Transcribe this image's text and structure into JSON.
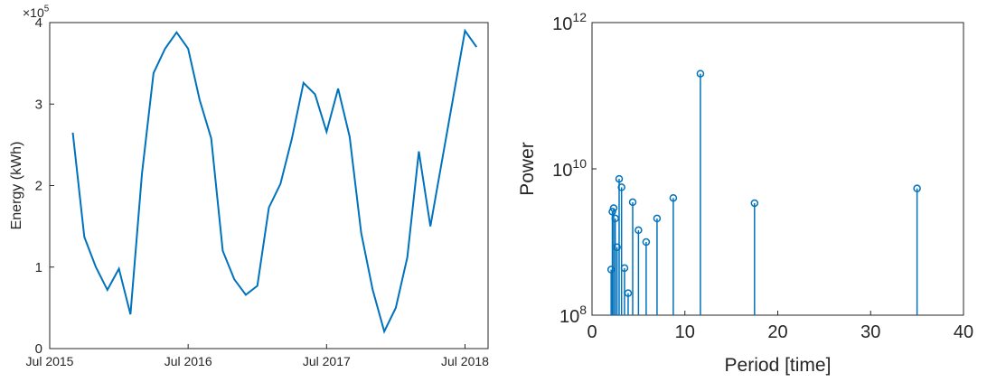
{
  "chart_data": [
    {
      "type": "line",
      "y_label": "Energy (kWh)",
      "y_multiplier": {
        "base": "×10",
        "exponent": "5"
      },
      "x": [
        "2015-09",
        "2015-10",
        "2015-11",
        "2015-12",
        "2016-01",
        "2016-02",
        "2016-03",
        "2016-04",
        "2016-05",
        "2016-06",
        "2016-07",
        "2016-08",
        "2016-09",
        "2016-10",
        "2016-11",
        "2016-12",
        "2017-01",
        "2017-02",
        "2017-03",
        "2017-04",
        "2017-05",
        "2017-06",
        "2017-07",
        "2017-08",
        "2017-09",
        "2017-10",
        "2017-11",
        "2017-12",
        "2018-01",
        "2018-02",
        "2018-03",
        "2018-04",
        "2018-07",
        "2018-08"
      ],
      "series": [
        {
          "color": "#0072bd",
          "values": [
            265000,
            137000,
            100000,
            72000,
            98000,
            42000,
            215000,
            338000,
            368000,
            388000,
            368000,
            305000,
            258000,
            120000,
            85000,
            66000,
            77000,
            173000,
            202000,
            258000,
            326000,
            312000,
            266000,
            319000,
            260000,
            142000,
            72000,
            21000,
            50000,
            112000,
            242000,
            150000,
            390000,
            370000
          ]
        }
      ],
      "xlim": [
        "2015-07",
        "2018-09"
      ],
      "xticks": [
        {
          "value": "2015-07",
          "label": "Jul 2015"
        },
        {
          "value": "2016-07",
          "label": "Jul 2016"
        },
        {
          "value": "2017-07",
          "label": "Jul 2017"
        },
        {
          "value": "2018-07",
          "label": "Jul 2018"
        }
      ],
      "ylim": [
        0,
        400000
      ],
      "yticks": [
        0,
        {
          "value": 100000,
          "label": "1"
        },
        {
          "value": 200000,
          "label": "2"
        },
        {
          "value": 300000,
          "label": "3"
        },
        {
          "value": 400000,
          "label": "4"
        }
      ]
    },
    {
      "type": "stem",
      "x_label": "Period [time]",
      "y_label": "Power",
      "log_y": true,
      "x": [
        35,
        17.5,
        11.67,
        8.75,
        7,
        5.83,
        5,
        4.38,
        3.89,
        3.5,
        3.18,
        2.92,
        2.69,
        2.5,
        2.33,
        2.19,
        2.06
      ],
      "series": [
        {
          "color": "#0072bd",
          "values": [
            5400000000.0,
            3400000000.0,
            200000000000.0,
            4000000000.0,
            2100000000.0,
            1000000000.0,
            1450000000.0,
            3500000000.0,
            200000000.0,
            440000000.0,
            5600000000.0,
            7300000000.0,
            850000000.0,
            2100000000.0,
            2900000000.0,
            2600000000.0,
            420000000.0
          ]
        }
      ],
      "xlim": [
        0,
        40
      ],
      "xticks": [
        0,
        10,
        20,
        30,
        40
      ],
      "ylim": [
        100000000.0,
        1000000000000.0
      ],
      "yticks": [
        {
          "value": 100000000.0,
          "label": {
            "base": "10",
            "exponent": "8"
          }
        },
        {
          "value": 10000000000.0,
          "label": {
            "base": "10",
            "exponent": "10"
          }
        },
        {
          "value": 1000000000000.0,
          "label": {
            "base": "10",
            "exponent": "12"
          }
        }
      ]
    }
  ]
}
